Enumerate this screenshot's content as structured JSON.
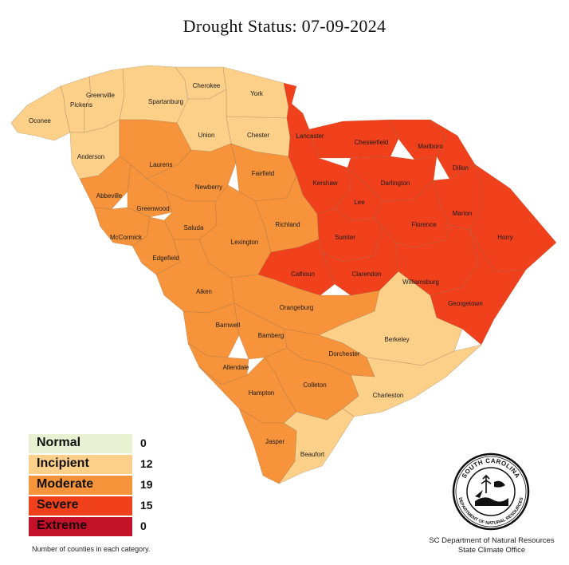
{
  "title": "Drought Status:  07-09-2024",
  "legend": [
    {
      "label": "Normal",
      "count": "0",
      "color": "#e8f1d2"
    },
    {
      "label": "Incipient",
      "count": "12",
      "color": "#fdd08a"
    },
    {
      "label": "Moderate",
      "count": "19",
      "color": "#f7933a"
    },
    {
      "label": "Severe",
      "count": "15",
      "color": "#f0401c"
    },
    {
      "label": "Extreme",
      "count": "0",
      "color": "#c3112a"
    }
  ],
  "legend_note": "Number of counties in each category.",
  "agency": {
    "line1": "SC Department of Natural Resources",
    "line2": "State Climate Office"
  },
  "seal": {
    "top_text": "SOUTH CAROLINA",
    "bottom_text": "DEPARTMENT OF NATURAL RESOURCES"
  },
  "counties": [
    {
      "name": "Oconee",
      "status": "Incipient"
    },
    {
      "name": "Pickens",
      "status": "Incipient"
    },
    {
      "name": "Greenville",
      "status": "Incipient"
    },
    {
      "name": "Spartanburg",
      "status": "Incipient"
    },
    {
      "name": "Cherokee",
      "status": "Incipient"
    },
    {
      "name": "York",
      "status": "Incipient"
    },
    {
      "name": "Union",
      "status": "Incipient"
    },
    {
      "name": "Chester",
      "status": "Incipient"
    },
    {
      "name": "Anderson",
      "status": "Incipient"
    },
    {
      "name": "Berkeley",
      "status": "Incipient"
    },
    {
      "name": "Charleston",
      "status": "Incipient"
    },
    {
      "name": "Beaufort",
      "status": "Incipient"
    },
    {
      "name": "Laurens",
      "status": "Moderate"
    },
    {
      "name": "Abbeville",
      "status": "Moderate"
    },
    {
      "name": "Greenwood",
      "status": "Moderate"
    },
    {
      "name": "Newberry",
      "status": "Moderate"
    },
    {
      "name": "Fairfield",
      "status": "Moderate"
    },
    {
      "name": "McCormick",
      "status": "Moderate"
    },
    {
      "name": "Saluda",
      "status": "Moderate"
    },
    {
      "name": "Edgefield",
      "status": "Moderate"
    },
    {
      "name": "Lexington",
      "status": "Moderate"
    },
    {
      "name": "Richland",
      "status": "Moderate"
    },
    {
      "name": "Aiken",
      "status": "Moderate"
    },
    {
      "name": "Orangeburg",
      "status": "Moderate"
    },
    {
      "name": "Barnwell",
      "status": "Moderate"
    },
    {
      "name": "Bamberg",
      "status": "Moderate"
    },
    {
      "name": "Allendale",
      "status": "Moderate"
    },
    {
      "name": "Dorchester",
      "status": "Moderate"
    },
    {
      "name": "Hampton",
      "status": "Moderate"
    },
    {
      "name": "Colleton",
      "status": "Moderate"
    },
    {
      "name": "Jasper",
      "status": "Moderate"
    },
    {
      "name": "Lancaster",
      "status": "Severe"
    },
    {
      "name": "Chesterfield",
      "status": "Severe"
    },
    {
      "name": "Marlboro",
      "status": "Severe"
    },
    {
      "name": "Dillon",
      "status": "Severe"
    },
    {
      "name": "Kershaw",
      "status": "Severe"
    },
    {
      "name": "Darlington",
      "status": "Severe"
    },
    {
      "name": "Lee",
      "status": "Severe"
    },
    {
      "name": "Marion",
      "status": "Severe"
    },
    {
      "name": "Florence",
      "status": "Severe"
    },
    {
      "name": "Horry",
      "status": "Severe"
    },
    {
      "name": "Sumter",
      "status": "Severe"
    },
    {
      "name": "Calhoun",
      "status": "Severe"
    },
    {
      "name": "Clarendon",
      "status": "Severe"
    },
    {
      "name": "Williamsburg",
      "status": "Severe"
    },
    {
      "name": "Georgetown",
      "status": "Severe"
    }
  ]
}
